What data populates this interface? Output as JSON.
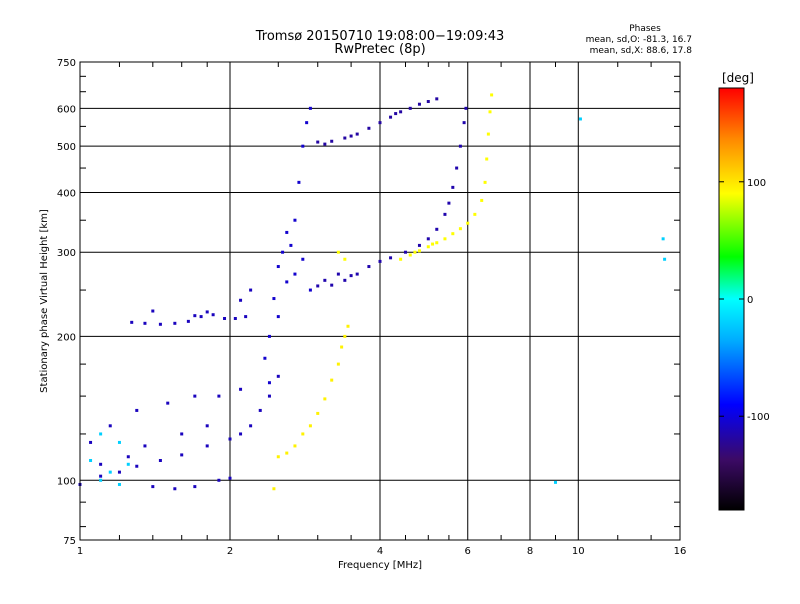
{
  "chart_data": {
    "type": "scatter",
    "title": "Tromsø 20150710 19:08:00−19:09:43",
    "subtitle": "RwPretec (8p)",
    "xlabel": "Frequency [MHz]",
    "ylabel": "Stationary phase Virtual Height [km]",
    "x_scale": "log",
    "y_scale": "log",
    "xlim": [
      1,
      16
    ],
    "ylim": [
      75,
      750
    ],
    "x_ticks": [
      1,
      2,
      4,
      6,
      8,
      10,
      16
    ],
    "x_tick_labels": [
      "1",
      "2",
      "4",
      "6",
      "8",
      "10",
      "16"
    ],
    "y_ticks": [
      75,
      100,
      200,
      300,
      400,
      500,
      600,
      750
    ],
    "y_tick_labels": [
      "75",
      "100",
      "200",
      "300",
      "400",
      "500",
      "600",
      "750"
    ],
    "grid": true,
    "stats": {
      "heading": "Phases",
      "line_o": "mean, sd,O: -81.3, 16.7",
      "line_x": "mean, sd,X:  88.6, 17.8"
    },
    "colorbar": {
      "label": "[deg]",
      "range": [
        -180,
        180
      ],
      "ticks": [
        100,
        0,
        -100
      ],
      "tick_labels": [
        "100",
        "0",
        "-100"
      ]
    },
    "series": [
      {
        "color_deg": -110,
        "points": [
          [
            1.27,
            214
          ],
          [
            1.35,
            213
          ],
          [
            1.45,
            212
          ],
          [
            1.55,
            213
          ],
          [
            1.65,
            215
          ],
          [
            1.75,
            220
          ],
          [
            1.8,
            225
          ],
          [
            1.85,
            222
          ],
          [
            1.95,
            218
          ],
          [
            2.05,
            218
          ],
          [
            2.15,
            220
          ],
          [
            1.4,
            226
          ],
          [
            1.7,
            221
          ],
          [
            2.1,
            238
          ],
          [
            2.2,
            250
          ]
        ]
      },
      {
        "color_deg": -115,
        "points": [
          [
            3.0,
            255
          ],
          [
            3.2,
            256
          ],
          [
            3.4,
            262
          ],
          [
            3.6,
            270
          ],
          [
            3.8,
            280
          ],
          [
            4.0,
            287
          ],
          [
            4.2,
            292
          ],
          [
            4.5,
            300
          ],
          [
            4.8,
            310
          ],
          [
            5.0,
            320
          ],
          [
            5.2,
            335
          ],
          [
            5.4,
            360
          ],
          [
            5.5,
            380
          ],
          [
            5.6,
            410
          ],
          [
            5.7,
            450
          ],
          [
            5.8,
            500
          ],
          [
            5.9,
            560
          ],
          [
            5.95,
            600
          ],
          [
            3.3,
            270
          ],
          [
            3.5,
            268
          ],
          [
            3.1,
            262
          ]
        ]
      },
      {
        "color_deg": -118,
        "points": [
          [
            3.0,
            510
          ],
          [
            3.2,
            512
          ],
          [
            3.4,
            520
          ],
          [
            3.6,
            530
          ],
          [
            3.8,
            545
          ],
          [
            4.0,
            560
          ],
          [
            4.2,
            575
          ],
          [
            4.4,
            590
          ],
          [
            4.6,
            600
          ],
          [
            4.8,
            612
          ],
          [
            5.0,
            620
          ],
          [
            5.2,
            628
          ],
          [
            3.1,
            505
          ],
          [
            3.5,
            525
          ],
          [
            4.3,
            585
          ]
        ]
      },
      {
        "color_deg": 90,
        "points": [
          [
            4.4,
            290
          ],
          [
            4.6,
            296
          ],
          [
            4.8,
            302
          ],
          [
            5.0,
            308
          ],
          [
            5.2,
            314
          ],
          [
            5.4,
            320
          ],
          [
            5.6,
            328
          ],
          [
            5.8,
            336
          ],
          [
            6.0,
            345
          ],
          [
            6.2,
            360
          ],
          [
            6.4,
            385
          ],
          [
            6.5,
            420
          ],
          [
            6.55,
            470
          ],
          [
            6.6,
            530
          ],
          [
            6.65,
            590
          ],
          [
            6.7,
            640
          ],
          [
            4.7,
            300
          ],
          [
            5.1,
            312
          ],
          [
            3.3,
            300
          ],
          [
            3.4,
            290
          ]
        ]
      },
      {
        "color_deg": 95,
        "points": [
          [
            2.5,
            112
          ],
          [
            2.6,
            114
          ],
          [
            2.7,
            118
          ],
          [
            2.8,
            125
          ],
          [
            2.9,
            130
          ],
          [
            3.0,
            138
          ],
          [
            3.1,
            148
          ],
          [
            3.2,
            162
          ],
          [
            3.3,
            175
          ],
          [
            3.35,
            190
          ],
          [
            3.4,
            200
          ],
          [
            3.45,
            210
          ],
          [
            2.45,
            96
          ]
        ]
      },
      {
        "color_deg": -105,
        "points": [
          [
            2.4,
            200
          ],
          [
            2.45,
            240
          ],
          [
            2.5,
            280
          ],
          [
            2.55,
            300
          ],
          [
            2.6,
            260
          ],
          [
            2.65,
            310
          ],
          [
            2.7,
            350
          ],
          [
            2.75,
            420
          ],
          [
            2.8,
            500
          ],
          [
            2.85,
            560
          ],
          [
            2.9,
            600
          ],
          [
            2.35,
            180
          ],
          [
            2.4,
            160
          ],
          [
            2.5,
            220
          ],
          [
            2.6,
            330
          ],
          [
            2.7,
            270
          ],
          [
            2.8,
            290
          ],
          [
            2.9,
            250
          ]
        ]
      },
      {
        "color_deg": -110,
        "points": [
          [
            1.0,
            98
          ],
          [
            1.1,
            102
          ],
          [
            1.2,
            104
          ],
          [
            1.3,
            107
          ],
          [
            1.45,
            110
          ],
          [
            1.6,
            113
          ],
          [
            1.8,
            118
          ],
          [
            2.0,
            122
          ],
          [
            2.1,
            125
          ],
          [
            2.2,
            130
          ],
          [
            2.3,
            140
          ],
          [
            2.4,
            150
          ],
          [
            2.5,
            165
          ],
          [
            1.4,
            97
          ],
          [
            1.55,
            96
          ],
          [
            1.7,
            97
          ],
          [
            1.9,
            100
          ],
          [
            2.0,
            101
          ],
          [
            1.05,
            120
          ],
          [
            1.15,
            130
          ],
          [
            1.3,
            140
          ],
          [
            1.5,
            145
          ],
          [
            1.7,
            150
          ],
          [
            1.9,
            150
          ],
          [
            2.1,
            155
          ],
          [
            1.1,
            108
          ],
          [
            1.25,
            112
          ],
          [
            1.35,
            118
          ],
          [
            1.6,
            125
          ],
          [
            1.8,
            130
          ]
        ]
      },
      {
        "color_deg": -20,
        "points": [
          [
            1.1,
            100
          ],
          [
            1.2,
            98
          ],
          [
            1.15,
            104
          ],
          [
            1.05,
            110
          ],
          [
            1.25,
            108
          ],
          [
            1.1,
            125
          ],
          [
            1.2,
            120
          ],
          [
            9.0,
            99
          ],
          [
            10.1,
            570
          ],
          [
            14.8,
            320
          ],
          [
            14.9,
            290
          ]
        ]
      }
    ]
  }
}
